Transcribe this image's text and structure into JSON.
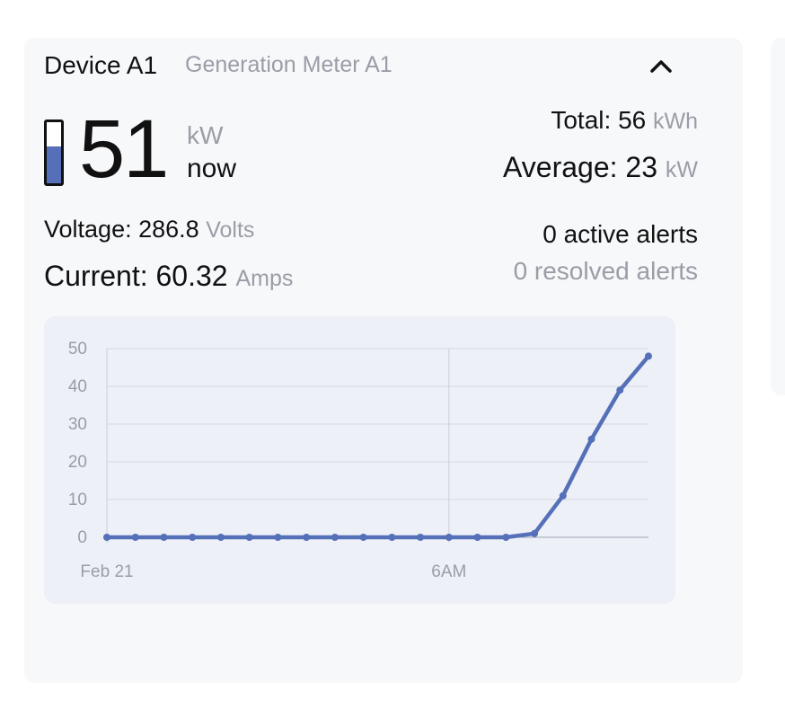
{
  "device": {
    "title": "Device A1",
    "subtitle": "Generation Meter A1",
    "collapse_icon": "chevron-up-icon"
  },
  "power": {
    "value": "51",
    "unit": "kW",
    "label": "now",
    "meter_fill_fraction": 0.6,
    "meter_color": "#5570b8"
  },
  "totals": {
    "total_label": "Total:",
    "total_value": "56",
    "total_unit": "kWh",
    "average_label": "Average:",
    "average_value": "23",
    "average_unit": "kW"
  },
  "electrical": {
    "voltage_label": "Voltage:",
    "voltage_value": "286.8",
    "voltage_unit": "Volts",
    "current_label": "Current:",
    "current_value": "60.32",
    "current_unit": "Amps"
  },
  "alerts": {
    "active": "0 active alerts",
    "resolved": "0 resolved alerts"
  },
  "chart_data": {
    "type": "line",
    "title": "",
    "xlabel": "",
    "ylabel": "",
    "x_tick_labels": [
      "Feb 21",
      "6AM"
    ],
    "x_tick_positions": [
      0,
      12
    ],
    "y_ticks": [
      0,
      10,
      20,
      30,
      40,
      50
    ],
    "ylim": [
      0,
      50
    ],
    "xlim": [
      0,
      19
    ],
    "grid": true,
    "line_color": "#5570b8",
    "series": [
      {
        "x": [
          0,
          1,
          2,
          3,
          4,
          5,
          6,
          7,
          8,
          9,
          10,
          11,
          12,
          13,
          14,
          15,
          16,
          17,
          18,
          19
        ],
        "values": [
          0,
          0,
          0,
          0,
          0,
          0,
          0,
          0,
          0,
          0,
          0,
          0,
          0,
          0,
          0,
          1,
          11,
          26,
          39,
          48
        ]
      }
    ]
  }
}
